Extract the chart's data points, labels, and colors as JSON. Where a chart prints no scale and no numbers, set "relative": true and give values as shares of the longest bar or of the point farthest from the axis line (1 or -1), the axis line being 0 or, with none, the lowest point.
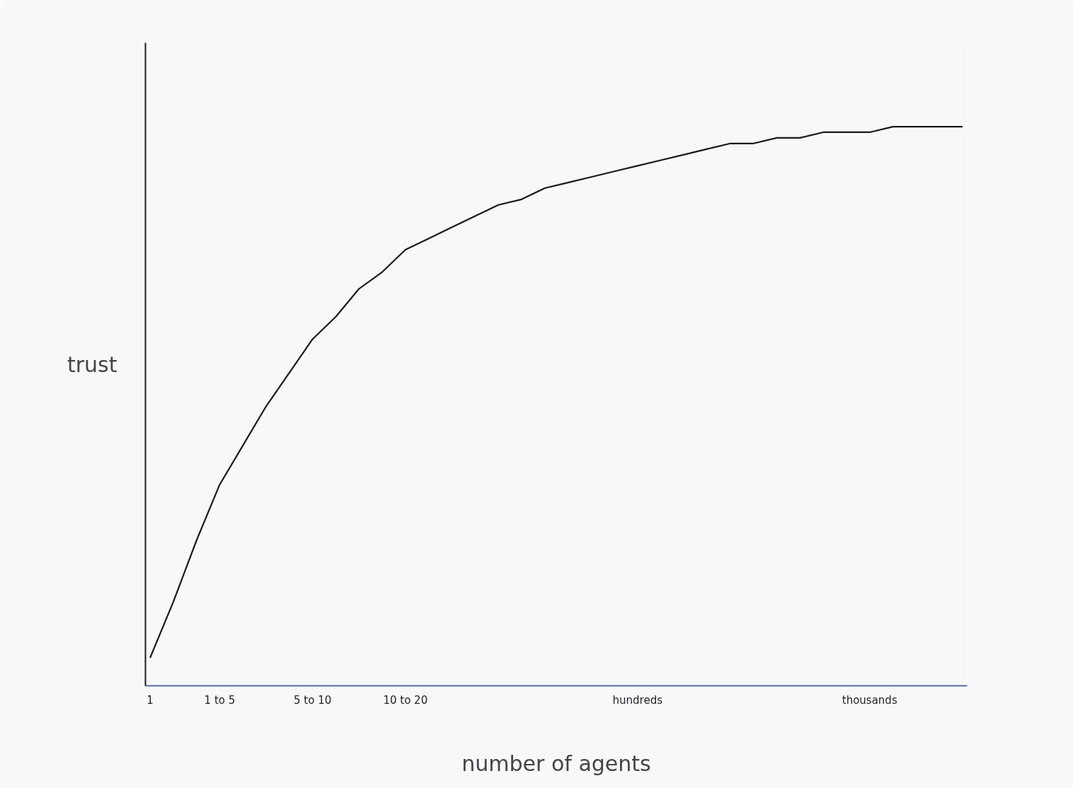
{
  "chart_data": {
    "type": "line",
    "relative": true,
    "xlabel": "number of agents",
    "ylabel": "trust",
    "categories": [
      "1",
      null,
      null,
      "1 to 5",
      null,
      null,
      null,
      "5 to 10",
      null,
      null,
      null,
      "10 to 20",
      null,
      null,
      null,
      null,
      null,
      null,
      null,
      null,
      null,
      "hundreds",
      null,
      null,
      null,
      null,
      null,
      null,
      null,
      null,
      null,
      "thousands",
      null,
      null,
      null,
      null
    ],
    "series": [
      {
        "color": "#1a1a1a",
        "values": [
          0.05,
          0.15,
          0.26,
          0.36,
          0.43,
          0.5,
          0.56,
          0.62,
          0.66,
          0.71,
          0.74,
          0.78,
          0.8,
          0.82,
          0.84,
          0.86,
          0.87,
          0.89,
          0.9,
          0.91,
          0.92,
          0.93,
          0.94,
          0.95,
          0.96,
          0.97,
          0.97,
          0.98,
          0.98,
          0.99,
          0.99,
          0.99,
          1.0,
          1.0,
          1.0,
          1.0
        ]
      }
    ],
    "grid": false,
    "marker": "none",
    "line_style": "solid"
  }
}
